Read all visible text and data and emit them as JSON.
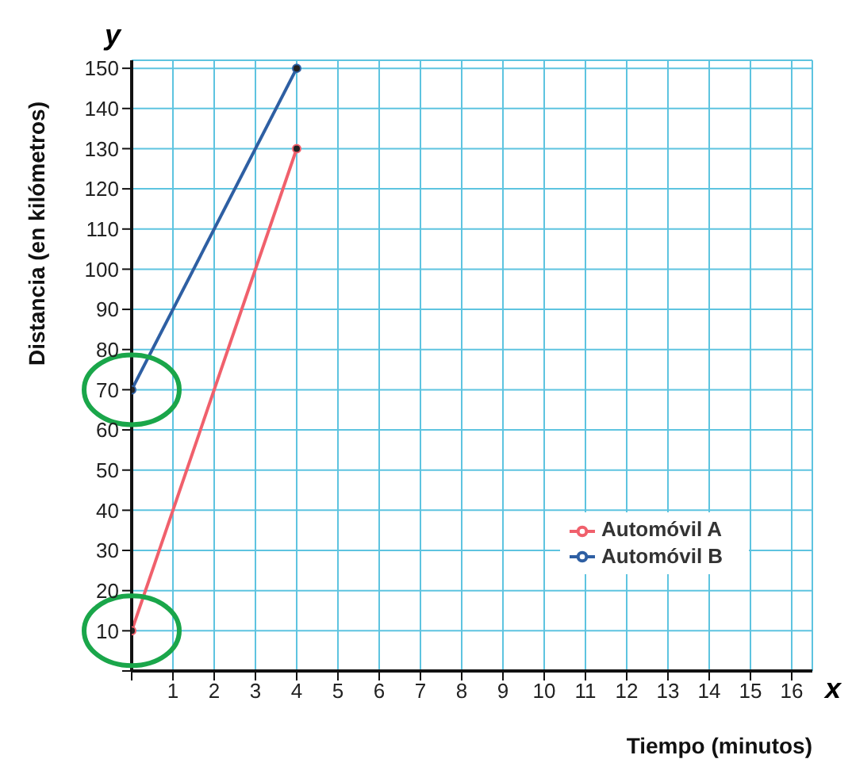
{
  "chart_data": {
    "type": "line",
    "xlabel": "Tiempo (minutos)",
    "ylabel": "Distancia (en kilómetros)",
    "annotations": [
      "x",
      "y"
    ],
    "series": [
      {
        "name": "Automóvil A",
        "color": "#f0606c",
        "values": [
          10,
          130
        ]
      },
      {
        "name": "Automóvil B",
        "color": "#2e5fa3",
        "values": [
          70,
          150
        ]
      }
    ],
    "x": [
      0,
      4
    ],
    "xlim": [
      0,
      16.5
    ],
    "xticks": [
      {
        "value": 0,
        "label": null
      },
      1,
      2,
      3,
      4,
      5,
      6,
      7,
      8,
      9,
      10,
      11,
      12,
      13,
      14,
      15,
      16
    ],
    "ylim": [
      0,
      152
    ],
    "yticks": [
      {
        "value": 0,
        "label": null
      },
      10,
      20,
      30,
      40,
      50,
      60,
      70,
      80,
      90,
      100,
      110,
      120,
      130,
      140,
      150
    ],
    "grid": true,
    "legend": "right",
    "marker": "circle",
    "line_style": "solid"
  }
}
